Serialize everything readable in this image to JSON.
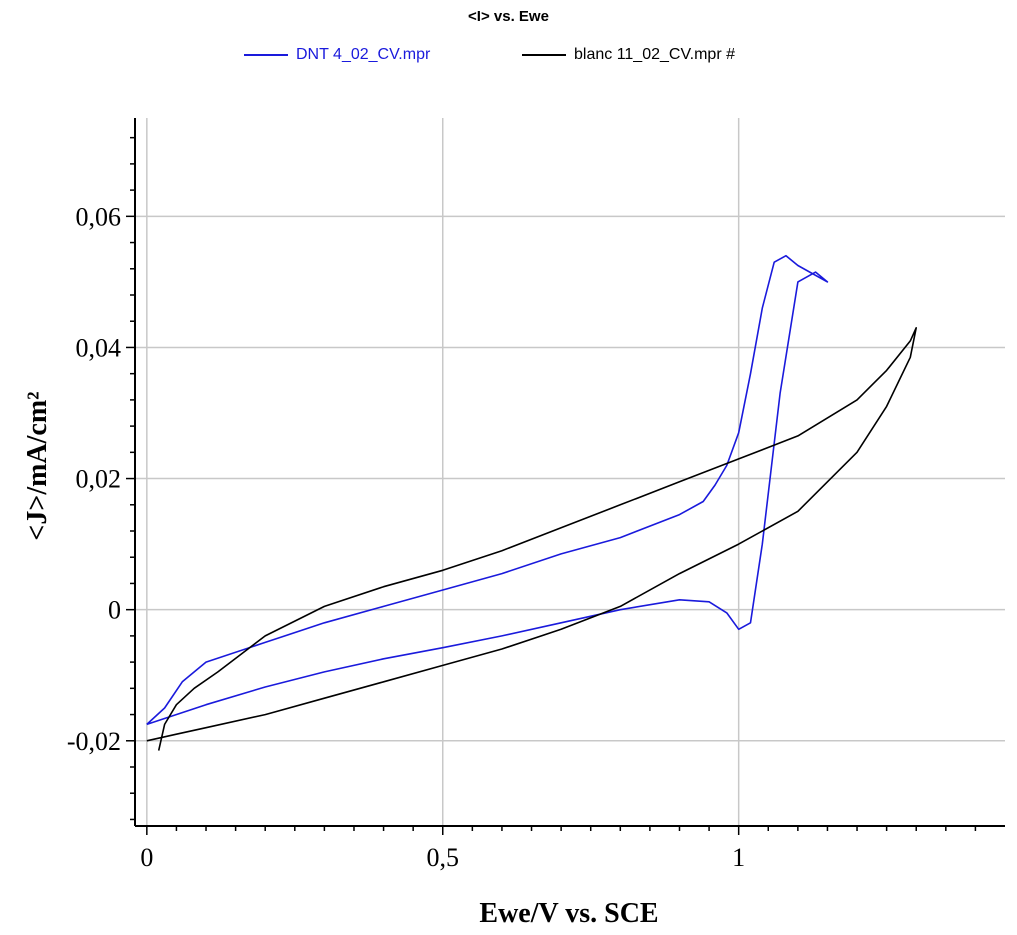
{
  "chart_data": {
    "type": "line",
    "title": "<I> vs. Ewe",
    "xlabel": "Ewe/V vs. SCE",
    "ylabel": "<J>/mA/cm²",
    "xlim": [
      -0.02,
      1.45
    ],
    "ylim": [
      -0.033,
      0.075
    ],
    "x_ticks": [
      0,
      0.5,
      1
    ],
    "x_tick_labels": [
      "0",
      "0,5",
      "1"
    ],
    "y_ticks": [
      -0.02,
      0,
      0.02,
      0.04,
      0.06
    ],
    "y_tick_labels": [
      "-0,02",
      "0",
      "0,02",
      "0,04",
      "0,06"
    ],
    "grid": true,
    "legend_position": "top-center",
    "series": [
      {
        "name": "DNT 4_02_CV.mpr",
        "color": "#1a1adc",
        "x": [
          0.0,
          0.1,
          0.2,
          0.3,
          0.4,
          0.5,
          0.6,
          0.7,
          0.8,
          0.9,
          0.95,
          0.98,
          1.0,
          1.02,
          1.04,
          1.07,
          1.1,
          1.13,
          1.15,
          1.15,
          1.1,
          1.08,
          1.06,
          1.04,
          1.02,
          1.0,
          0.98,
          0.96,
          0.94,
          0.9,
          0.8,
          0.7,
          0.6,
          0.5,
          0.4,
          0.3,
          0.2,
          0.1,
          0.06,
          0.03,
          0.0
        ],
        "y": [
          -0.0175,
          -0.0145,
          -0.0118,
          -0.0095,
          -0.0075,
          -0.0058,
          -0.004,
          -0.002,
          0.0,
          0.0015,
          0.0012,
          -0.0005,
          -0.003,
          -0.002,
          0.01,
          0.033,
          0.05,
          0.0515,
          0.05,
          0.05,
          0.0525,
          0.054,
          0.053,
          0.046,
          0.036,
          0.027,
          0.022,
          0.019,
          0.0165,
          0.0145,
          0.011,
          0.0085,
          0.0055,
          0.003,
          0.0005,
          -0.002,
          -0.005,
          -0.008,
          -0.011,
          -0.015,
          -0.0175
        ]
      },
      {
        "name": "blanc 11_02_CV.mpr #",
        "color": "#000000",
        "x": [
          0.02,
          0.03,
          0.05,
          0.08,
          0.12,
          0.2,
          0.3,
          0.4,
          0.5,
          0.6,
          0.7,
          0.8,
          0.9,
          1.0,
          1.1,
          1.2,
          1.25,
          1.29,
          1.3,
          1.29,
          1.25,
          1.2,
          1.1,
          1.0,
          0.9,
          0.8,
          0.7,
          0.6,
          0.5,
          0.4,
          0.3,
          0.2,
          0.1,
          0.05,
          0.0
        ],
        "y": [
          -0.0215,
          -0.0175,
          -0.0145,
          -0.012,
          -0.0095,
          -0.004,
          0.0005,
          0.0035,
          0.006,
          0.009,
          0.0125,
          0.016,
          0.0195,
          0.023,
          0.0265,
          0.032,
          0.0365,
          0.041,
          0.043,
          0.0385,
          0.031,
          0.024,
          0.015,
          0.01,
          0.0055,
          0.0005,
          -0.003,
          -0.006,
          -0.0085,
          -0.011,
          -0.0135,
          -0.016,
          -0.018,
          -0.019,
          -0.02
        ]
      }
    ]
  }
}
